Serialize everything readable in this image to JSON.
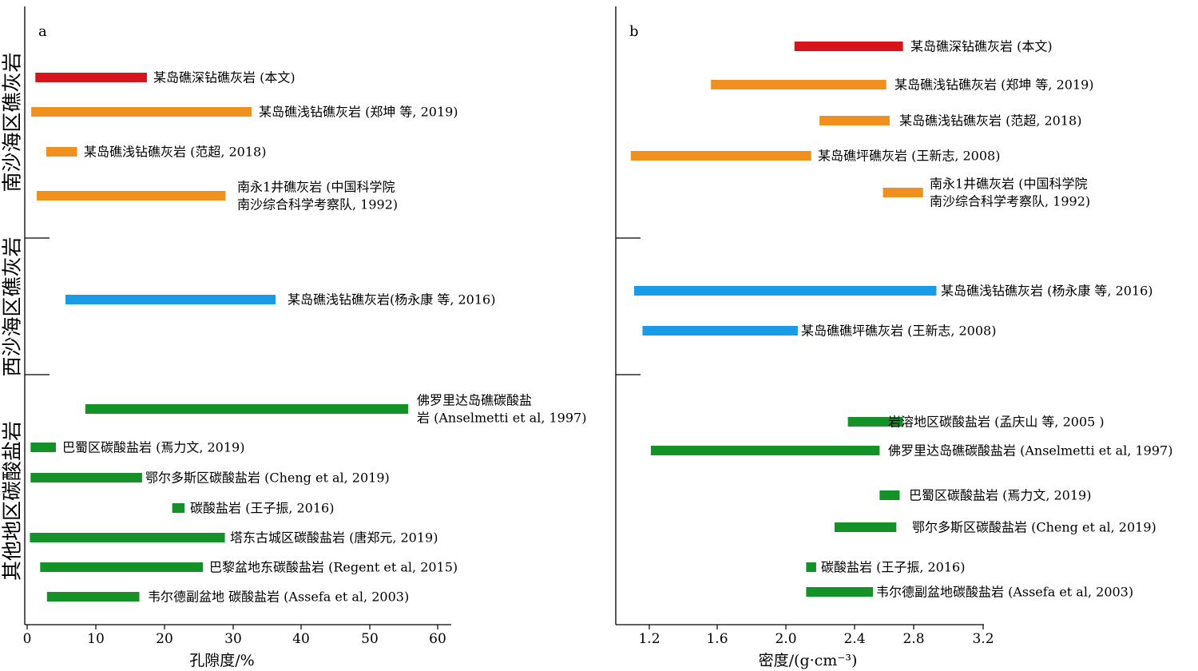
{
  "colors": {
    "red": "#d7141b",
    "orange": "#f0901f",
    "blue": "#1a9be8",
    "green": "#149127"
  },
  "groups": [
    "南沙海区礁灰岩",
    "西沙海区礁灰岩",
    "其他地区碳酸盐岩"
  ],
  "chart_data": [
    {
      "type": "range-bar",
      "panel": "a",
      "xlabel": "孔隙度/%",
      "xlim": [
        0,
        60
      ],
      "xticks": [
        "0",
        "10",
        "20",
        "30",
        "40",
        "50",
        "60"
      ],
      "bars": [
        {
          "label": [
            "某岛礁深钻礁灰岩 (本文)"
          ],
          "start": 1.2,
          "end": 17.5,
          "color": "red",
          "group": 0
        },
        {
          "label": [
            "某岛礁浅钻礁灰岩 (郑坤 等, 2019)"
          ],
          "start": 0.6,
          "end": 32.8,
          "color": "orange",
          "group": 0
        },
        {
          "label": [
            "某岛礁浅钻礁灰岩 (范超, 2018)"
          ],
          "start": 2.8,
          "end": 7.3,
          "color": "orange",
          "group": 0
        },
        {
          "label": [
            "南永1井礁灰岩 (中国科学院",
            "南沙综合科学考察队, 1992)"
          ],
          "start": 1.4,
          "end": 29.0,
          "color": "orange",
          "group": 0
        },
        {
          "label": [
            "某岛礁浅钻礁灰岩(杨永康 等, 2016)"
          ],
          "start": 5.6,
          "end": 36.3,
          "color": "blue",
          "group": 1
        },
        {
          "label": [
            "佛罗里达岛礁碳酸盐",
            "岩 (Anselmetti et al, 1997)"
          ],
          "start": 8.5,
          "end": 55.7,
          "color": "green",
          "group": 2
        },
        {
          "label": [
            "巴蜀区碳酸盐岩 (焉力文, 2019)"
          ],
          "start": 0.5,
          "end": 4.2,
          "color": "green",
          "group": 2
        },
        {
          "label": [
            "鄂尔多斯区碳酸盐岩 (Cheng et al, 2019)"
          ],
          "start": 0.5,
          "end": 16.8,
          "color": "green",
          "group": 2
        },
        {
          "label": [
            "碳酸盐岩 (王子振, 2016)"
          ],
          "start": 21.2,
          "end": 23.0,
          "color": "green",
          "group": 2
        },
        {
          "label": [
            "塔东古城区碳酸盐岩 (唐郑元, 2019)"
          ],
          "start": 0.4,
          "end": 28.9,
          "color": "green",
          "group": 2
        },
        {
          "label": [
            "巴黎盆地东碳酸盐岩 (Regent et al, 2015)"
          ],
          "start": 1.9,
          "end": 25.7,
          "color": "green",
          "group": 2
        },
        {
          "label": [
            "韦尔德副盆地 碳酸盐岩 (Assefa et al, 2003)"
          ],
          "start": 2.9,
          "end": 16.4,
          "color": "green",
          "group": 2
        }
      ]
    },
    {
      "type": "range-bar",
      "panel": "b",
      "xlabel": "密度/(g·cm⁻³)",
      "xlim": [
        1.0,
        3.2
      ],
      "xticks": [
        "1.2",
        "1.6",
        "2.0",
        "2.4",
        "2.8",
        "3.2"
      ],
      "bars": [
        {
          "label": [
            "某岛礁深钻礁灰岩 (本文)"
          ],
          "start": 2.07,
          "end": 2.72,
          "color": "red",
          "group": 0
        },
        {
          "label": [
            "某岛礁浅钻礁灰岩 (郑坤 等, 2019)"
          ],
          "start": 1.57,
          "end": 2.62,
          "color": "orange",
          "group": 0
        },
        {
          "label": [
            "某岛礁浅钻礁灰岩 (范超, 2018)"
          ],
          "start": 2.22,
          "end": 2.64,
          "color": "orange",
          "group": 0
        },
        {
          "label": [
            "某岛礁坪礁灰岩 (王新志, 2008)"
          ],
          "start": 1.09,
          "end": 2.17,
          "color": "orange",
          "group": 0
        },
        {
          "label": [
            "南永1井礁灰岩 (中国科学院",
            "南沙综合科学考察队, 1992)"
          ],
          "start": 2.6,
          "end": 2.84,
          "color": "orange",
          "group": 0
        },
        {
          "label": [
            "某岛礁浅钻礁灰岩 (杨永康 等, 2016)"
          ],
          "start": 1.11,
          "end": 2.92,
          "color": "blue",
          "group": 1
        },
        {
          "label": [
            "某岛礁礁坪礁灰岩 (王新志, 2008)"
          ],
          "start": 1.16,
          "end": 2.09,
          "color": "blue",
          "group": 1
        },
        {
          "label": [
            "岩溶地区碳酸盐岩 (孟庆山 等, 2005 )"
          ],
          "start": 2.39,
          "end": 2.72,
          "color": "green",
          "group": 2
        },
        {
          "label": [
            "佛罗里达岛礁碳酸盐岩 (Anselmetti et al, 1997)"
          ],
          "start": 1.21,
          "end": 2.58,
          "color": "green",
          "group": 2
        },
        {
          "label": [
            "巴蜀区碳酸盐岩 (焉力文, 2019)"
          ],
          "start": 2.58,
          "end": 2.7,
          "color": "green",
          "group": 2
        },
        {
          "label": [
            "鄂尔多斯区碳酸盐岩 (Cheng et al, 2019)"
          ],
          "start": 2.31,
          "end": 2.68,
          "color": "green",
          "group": 2
        },
        {
          "label": [
            "碳酸盐岩 (王子振, 2016)"
          ],
          "start": 2.14,
          "end": 2.2,
          "color": "green",
          "group": 2
        },
        {
          "label": [
            "韦尔德副盆地碳酸盐岩 (Assefa et al, 2003)"
          ],
          "start": 2.14,
          "end": 2.54,
          "color": "green",
          "group": 2
        }
      ]
    }
  ]
}
